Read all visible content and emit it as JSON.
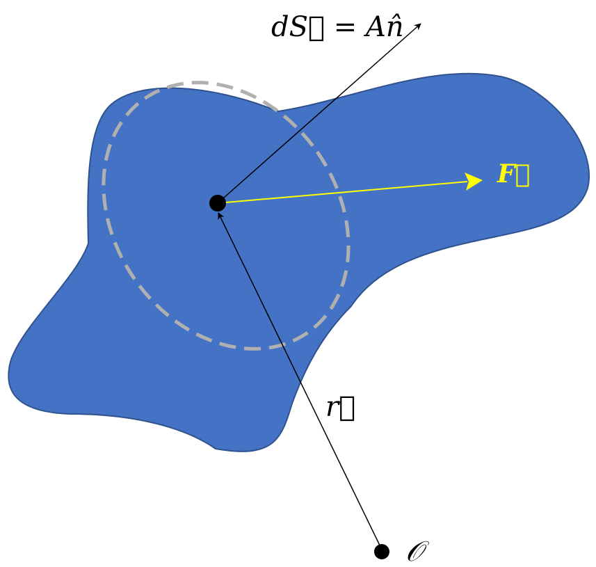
{
  "labels": {
    "surface_element": "dS⃗ = An̂",
    "force": "F⃗",
    "position": "r⃗",
    "origin": "𝒪"
  },
  "colors": {
    "surface_fill": "#4472c4",
    "surface_stroke": "#2f528f",
    "patch_outline": "#b0b0b0",
    "force_vector": "#ffff00",
    "normal_vector": "#000000",
    "position_vector": "#000000",
    "point": "#000000",
    "text": "#000000",
    "force_label": "#ffff00"
  }
}
